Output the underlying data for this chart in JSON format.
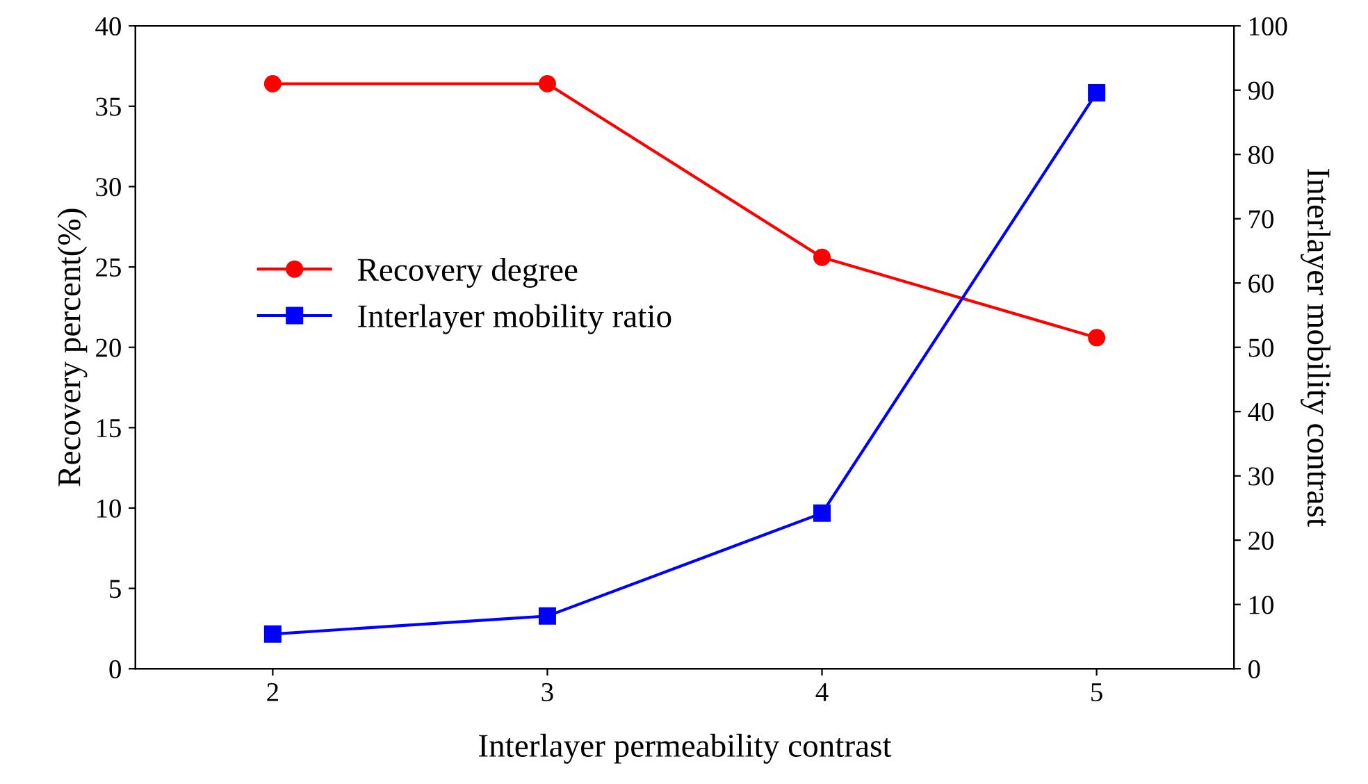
{
  "chart_data": {
    "type": "line",
    "xlabel": "Interlayer permeability contrast",
    "ylabel": "Recovery percent(%)",
    "y2label": "Interlayer mobility contrast",
    "x": [
      2,
      3,
      4,
      5
    ],
    "xlim": [
      1.5,
      5.5
    ],
    "xticks": [
      2,
      3,
      4,
      5
    ],
    "ylim": [
      0,
      40
    ],
    "yticks": [
      0,
      5,
      10,
      15,
      20,
      25,
      30,
      35,
      40
    ],
    "y2lim": [
      0,
      100
    ],
    "y2ticks": [
      0,
      10,
      20,
      30,
      40,
      50,
      60,
      70,
      80,
      90,
      100
    ],
    "grid": false,
    "legend": "center left",
    "series": [
      {
        "name": "Recovery degree",
        "color": "#ff0000",
        "marker": "circle",
        "values": [
          36.4,
          36.4,
          25.6,
          20.6
        ]
      },
      {
        "name": "Interlayer mobility ratio",
        "color": "#0000ff",
        "marker": "square",
        "axis": "y2",
        "values": [
          5.4,
          8.2,
          24.2,
          89.6
        ]
      }
    ]
  }
}
